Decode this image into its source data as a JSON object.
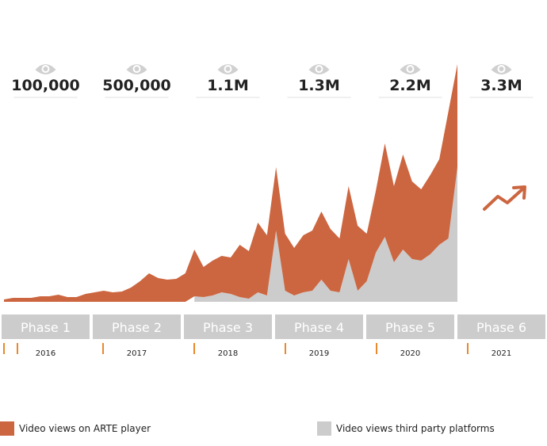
{
  "chart_data": {
    "type": "stacked-area",
    "categories": [
      null,
      null,
      null,
      null,
      null,
      null,
      null,
      null,
      null,
      null,
      null,
      null,
      null,
      null,
      null,
      null,
      null,
      null,
      null,
      null,
      null,
      null,
      null,
      null,
      null,
      null,
      null,
      null,
      null,
      null,
      null,
      null,
      null,
      null,
      null,
      null,
      null,
      null,
      null,
      null,
      null,
      null,
      null,
      null,
      null,
      null,
      null,
      null,
      null,
      null,
      null
    ],
    "series": [
      {
        "name": "Video views third party platforms",
        "color": "#cccccc",
        "values": [
          null,
          null,
          null,
          null,
          null,
          null,
          null,
          null,
          null,
          null,
          null,
          null,
          null,
          null,
          null,
          null,
          null,
          null,
          null,
          null,
          null,
          7,
          6,
          8,
          12,
          10,
          6,
          4,
          12,
          8,
          90,
          14,
          8,
          12,
          14,
          28,
          14,
          12,
          54,
          14,
          26,
          62,
          82,
          50,
          66,
          54,
          52,
          60,
          72,
          80,
          170
        ]
      },
      {
        "name": "Video views on ARTE player",
        "color": "#cc6640",
        "values": [
          3,
          5,
          5,
          5,
          7,
          7,
          9,
          6,
          6,
          10,
          12,
          14,
          12,
          13,
          18,
          26,
          36,
          30,
          28,
          29,
          36,
          59,
          38,
          44,
          46,
          46,
          66,
          60,
          88,
          76,
          80,
          72,
          60,
          72,
          76,
          86,
          78,
          68,
          92,
          82,
          60,
          78,
          118,
          96,
          120,
          98,
          90,
          100,
          108,
          160,
          130
        ]
      }
    ],
    "ylim": [
      0,
      300
    ],
    "phases": [
      "Phase 1",
      "Phase 2",
      "Phase 3",
      "Phase 4",
      "Phase 5",
      "Phase 6"
    ],
    "years": [
      "2016",
      "2017",
      "2018",
      "2019",
      "2020",
      "2021"
    ],
    "view_labels": [
      "100,000",
      "500,000",
      "1.1M",
      "1.3M",
      "2.2M",
      "3.3M"
    ]
  }
}
